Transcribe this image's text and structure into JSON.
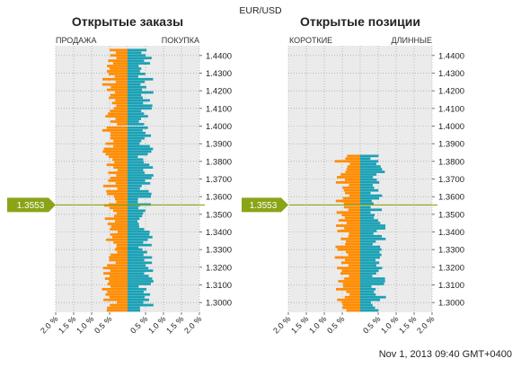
{
  "symbol": "EUR/USD",
  "timestamp": "Nov 1, 2013 09:40 GMT+0400",
  "current_price": "1.3553",
  "colors": {
    "short": "#ff8c00",
    "long": "#1ba1b5",
    "price": "#8aa418",
    "panel": "#ebebeb",
    "grid": "#999999"
  },
  "chart_data": [
    {
      "type": "bar",
      "orientation": "horizontal-diverging",
      "title": "Открытые заказы",
      "left_label": "ПРОДАЖА",
      "right_label": "ПОКУПКА",
      "y_ticks": [
        "1.4400",
        "1.4300",
        "1.4200",
        "1.4100",
        "1.4000",
        "1.3900",
        "1.3800",
        "1.3700",
        "1.3600",
        "1.3500",
        "1.3400",
        "1.3300",
        "1.3200",
        "1.3100",
        "1.3000"
      ],
      "x_ticks": [
        "2.0 %",
        "1.5 %",
        "1.0 %",
        "0.5 %",
        "0.5 %",
        "1.0 %",
        "1.5 %",
        "2.0 %"
      ],
      "xlim_pct": [
        -2.0,
        2.0
      ],
      "ylim_price": [
        1.2945,
        1.4455
      ],
      "bin_size": 0.0015,
      "current_price": 1.3553,
      "groups": [
        {
          "from": 1.443,
          "to": 1.4,
          "sell": [
            0.5,
            0.5
          ],
          "buy": [
            0.5,
            0.5
          ]
        },
        {
          "from": 1.399,
          "to": 1.355,
          "sell": [
            0.5,
            0.5
          ],
          "buy": [
            0.5,
            0.5
          ]
        },
        {
          "from": 1.355,
          "to": 1.33,
          "sell": [
            0.5,
            0.5
          ],
          "buy": [
            0.5,
            0.5
          ]
        },
        {
          "from": 1.33,
          "to": 1.2955,
          "sell": [
            0.5,
            0.5
          ],
          "buy": [
            0.5,
            0.5
          ]
        }
      ]
    },
    {
      "type": "bar",
      "orientation": "horizontal-diverging",
      "title": "Открытые позиции",
      "left_label": "КОРОТКИЕ",
      "right_label": "ДЛИННЫЕ",
      "y_ticks": [
        "1.4400",
        "1.4300",
        "1.4200",
        "1.4100",
        "1.4000",
        "1.3900",
        "1.3800",
        "1.3700",
        "1.3600",
        "1.3500",
        "1.3400",
        "1.3300",
        "1.3200",
        "1.3100",
        "1.3000"
      ],
      "x_ticks": [
        "2.0 %",
        "1.5 %",
        "1.0 %",
        "0.5 %",
        "0.5 %",
        "1.0 %",
        "1.5 %",
        "2.0 %"
      ],
      "xlim_pct": [
        -2.0,
        2.0
      ],
      "ylim_price": [
        1.2945,
        1.4455
      ],
      "bin_size": 0.0015,
      "current_price": 1.3553,
      "groups": [
        {
          "from": 1.383,
          "to": 1.3555,
          "short": [
            0.5,
            0.5
          ],
          "long": [
            0.5,
            0.5
          ]
        },
        {
          "from": 1.354,
          "to": 1.295,
          "short": [
            0.5,
            0.5
          ],
          "long": [
            0.5,
            0.5
          ]
        }
      ]
    }
  ]
}
